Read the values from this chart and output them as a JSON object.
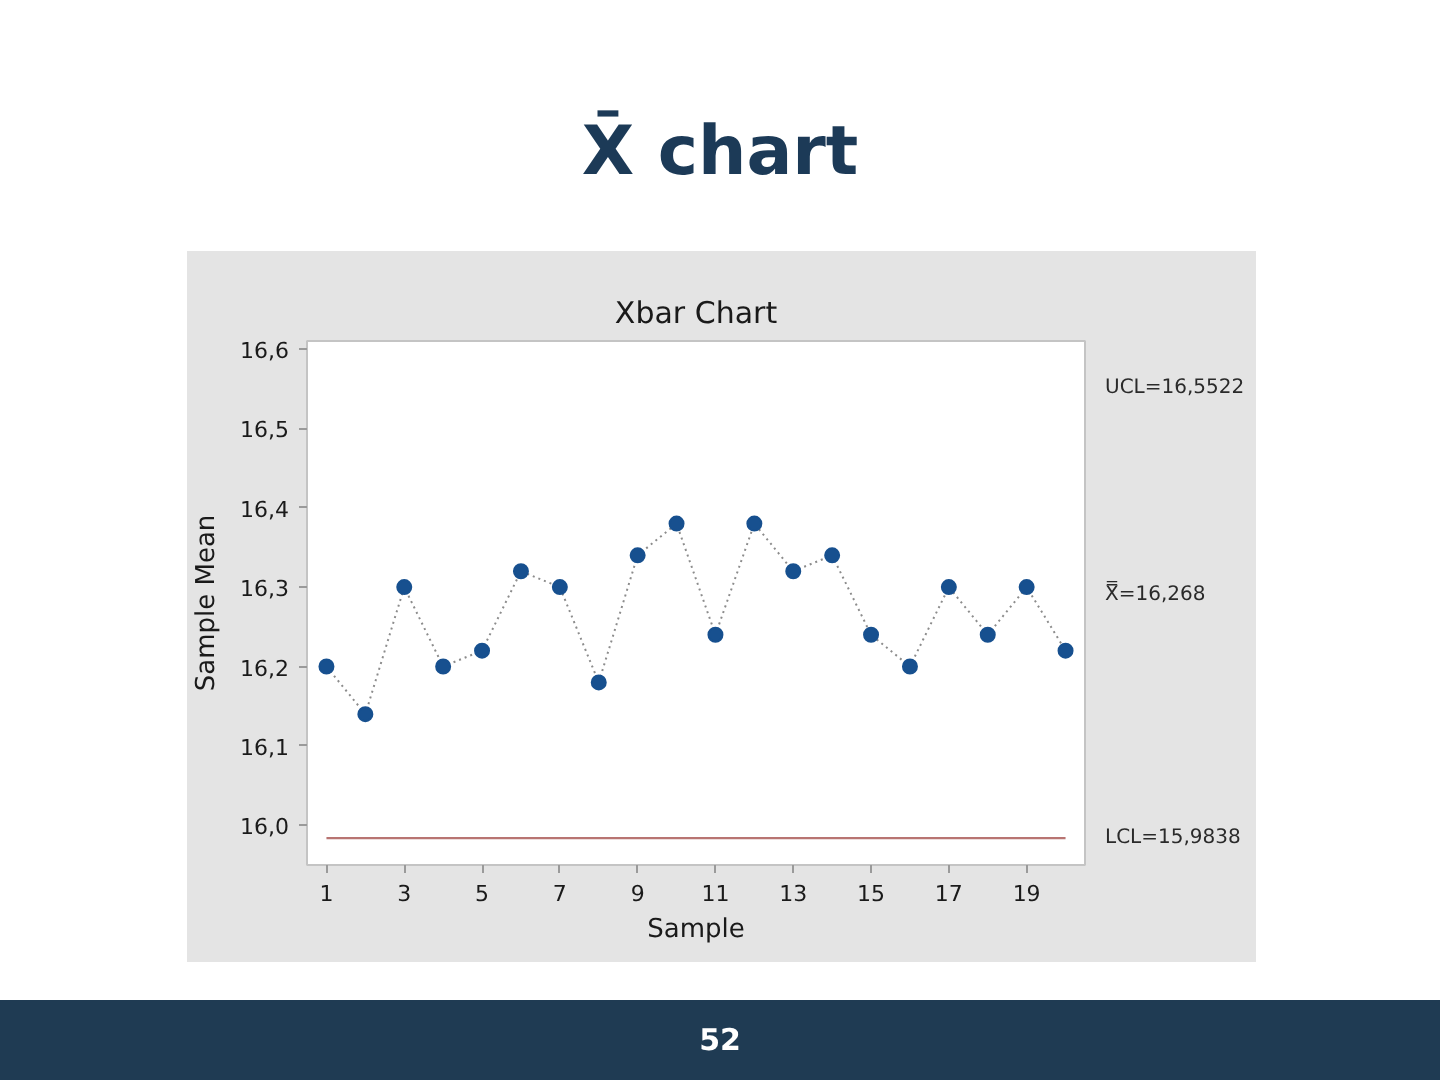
{
  "chart_data": {
    "type": "line",
    "title": "X̄ chart",
    "subtitle": "Xbar Chart",
    "xlabel": "Sample",
    "ylabel": "Sample Mean",
    "series": [
      {
        "x": [
          1,
          2,
          3,
          4,
          5,
          6,
          7,
          8,
          9,
          10,
          11,
          12,
          13,
          14,
          15,
          16,
          17,
          18,
          19,
          20
        ],
        "color": "#17508f",
        "values": [
          16.2,
          16.14,
          16.3,
          16.2,
          16.22,
          16.32,
          16.3,
          16.18,
          16.34,
          16.38,
          16.24,
          16.38,
          16.32,
          16.34,
          16.24,
          16.2,
          16.3,
          16.24,
          16.3,
          16.22
        ]
      }
    ],
    "xlim": [
      0.5,
      20.5
    ],
    "xticks": [
      1,
      3,
      5,
      7,
      9,
      11,
      13,
      15,
      17,
      19
    ],
    "ylim": [
      15.95,
      16.61
    ],
    "yticks": [
      {
        "value": 16.0,
        "label": "16,0"
      },
      {
        "value": 16.1,
        "label": "16,1"
      },
      {
        "value": 16.2,
        "label": "16,2"
      },
      {
        "value": 16.3,
        "label": "16,3"
      },
      {
        "value": 16.4,
        "label": "16,4"
      },
      {
        "value": 16.5,
        "label": "16,5"
      },
      {
        "value": 16.6,
        "label": "16,6"
      }
    ],
    "ref_lines": [
      {
        "axis": "y",
        "value": 15.9838,
        "label": "LCL=15,9838",
        "color": "#b87472"
      }
    ],
    "annotations": [
      "UCL=16,5522",
      "X̿=16,268",
      "52"
    ],
    "marker": "circle",
    "line_style": "dotted",
    "grid": false
  }
}
